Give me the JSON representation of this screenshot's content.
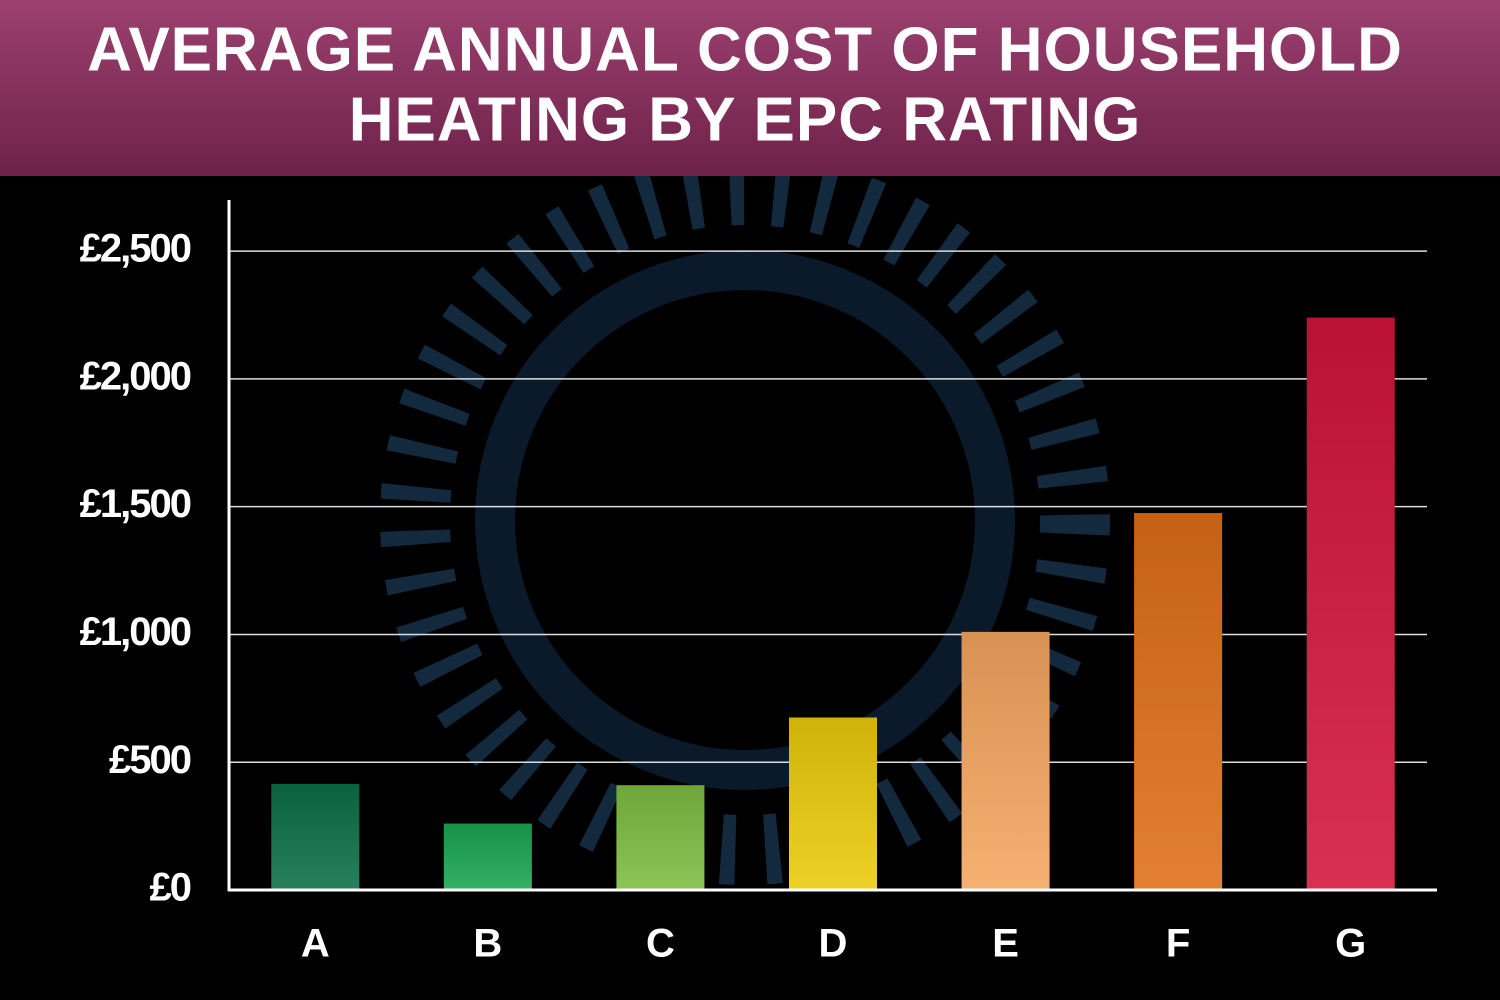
{
  "chart_data": {
    "type": "bar",
    "title": [
      "AVERAGE ANNUAL COST OF HOUSEHOLD",
      "HEATING BY EPC RATING"
    ],
    "categories": [
      "A",
      "B",
      "C",
      "D",
      "E",
      "F",
      "G"
    ],
    "values": [
      415,
      260,
      410,
      675,
      1010,
      1475,
      2240
    ],
    "colors": [
      "#0b6e47",
      "#18a64f",
      "#7dbd40",
      "#eccb0a",
      "#f5a55e",
      "#e06e16",
      "#d4143a"
    ],
    "ylim": [
      0,
      2700
    ],
    "yticks": [
      {
        "value": 0,
        "label": "£0"
      },
      {
        "value": 500,
        "label": "£500"
      },
      {
        "value": 1000,
        "label": "£1,000"
      },
      {
        "value": 1500,
        "label": "£1,500"
      },
      {
        "value": 2000,
        "label": "£2,000"
      },
      {
        "value": 2500,
        "label": "£2,500"
      }
    ],
    "grid": true
  }
}
